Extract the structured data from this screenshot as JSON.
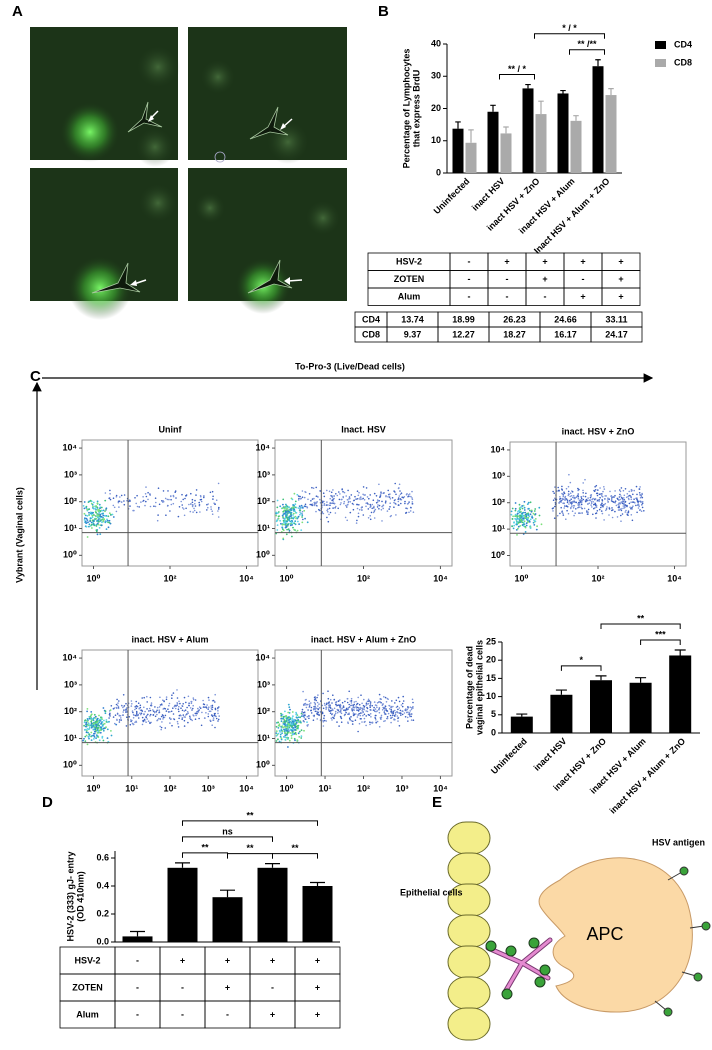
{
  "panel_labels": [
    "A",
    "B",
    "C",
    "D",
    "E"
  ],
  "panel_b_conditions": {
    "rows": [
      [
        "HSV-2",
        "-",
        "+",
        "+",
        "+",
        "+"
      ],
      [
        "ZOTEN",
        "-",
        "-",
        "+",
        "-",
        "+"
      ],
      [
        "Alum",
        "-",
        "-",
        "-",
        "+",
        "+"
      ]
    ]
  },
  "panel_c": {
    "x_label": "To-Pro-3 (Live/Dead cells)",
    "y_label": "Vybrant (Vaginal cells)"
  },
  "panel_e": {
    "cells_label": "Epithelial cells",
    "antigen_label": "HSV antigen",
    "apc_label": "APC"
  },
  "chart_data": [
    {
      "type": "bar",
      "ylabel": [
        "Percentage of Lymphocytes",
        "that express BrdU"
      ],
      "categories": [
        "Uninfected",
        "inact HSV",
        "inact HSV + ZnO",
        "inact HSV + Alum",
        "Inact HSV + Alum + ZnO"
      ],
      "series": [
        {
          "name": "CD4",
          "color": "#000000",
          "values": [
            13.74,
            18.99,
            26.23,
            24.66,
            33.11
          ],
          "errors": [
            2.1,
            2.0,
            1.2,
            0.9,
            2.0
          ]
        },
        {
          "name": "CD8",
          "color": "#aaaaaa",
          "values": [
            9.37,
            12.27,
            18.27,
            16.17,
            24.17
          ],
          "errors": [
            4.0,
            2.0,
            4.0,
            1.6,
            2.0
          ]
        }
      ],
      "ylim": [
        0,
        40
      ],
      "yticks": [
        0,
        10,
        20,
        30,
        40
      ],
      "legend": "right",
      "brackets": [
        {
          "label": "** / *",
          "between": [
            1,
            2
          ]
        },
        {
          "label": "** /**",
          "between": [
            3,
            4
          ]
        },
        {
          "label": "* / *",
          "between": [
            2,
            4
          ]
        }
      ]
    },
    {
      "type": "flow",
      "title": "Uninf",
      "xscale": "log",
      "yscale": "log",
      "xlim": [
        0.5,
        20000
      ],
      "ylim": [
        0.4,
        20000
      ],
      "xticks": [
        {
          "value": 1,
          "label": "10⁰"
        },
        {
          "value": 100,
          "label": "10²"
        },
        {
          "value": 10000,
          "label": "10⁴"
        }
      ],
      "yticks": [
        {
          "value": 1,
          "label": "10⁰"
        },
        {
          "value": 10,
          "label": "10¹"
        },
        {
          "value": 100,
          "label": "10²"
        },
        {
          "value": 1000,
          "label": "10³"
        },
        {
          "value": 10000,
          "label": "10⁴"
        }
      ],
      "gate": {
        "x": 8,
        "y": 7
      }
    },
    {
      "type": "flow",
      "title": "Inact. HSV",
      "xscale": "log",
      "yscale": "log",
      "xlim": [
        0.5,
        20000
      ],
      "ylim": [
        0.4,
        20000
      ],
      "xticks": [
        {
          "value": 1,
          "label": "10⁰"
        },
        {
          "value": 100,
          "label": "10²"
        },
        {
          "value": 10000,
          "label": "10⁴"
        }
      ],
      "yticks": [
        {
          "value": 1,
          "label": "10⁰"
        },
        {
          "value": 10,
          "label": "10¹"
        },
        {
          "value": 100,
          "label": "10²"
        },
        {
          "value": 1000,
          "label": "10³"
        },
        {
          "value": 10000,
          "label": "10⁴"
        }
      ],
      "gate": {
        "x": 8,
        "y": 7
      }
    },
    {
      "type": "flow",
      "title": "inact. HSV + ZnO",
      "xscale": "log",
      "yscale": "log",
      "xlim": [
        0.5,
        20000
      ],
      "ylim": [
        0.4,
        20000
      ],
      "xticks": [
        {
          "value": 1,
          "label": "10⁰"
        },
        {
          "value": 100,
          "label": "10²"
        },
        {
          "value": 10000,
          "label": "10⁴"
        }
      ],
      "yticks": [
        {
          "value": 1,
          "label": "10⁰"
        },
        {
          "value": 10,
          "label": "10¹"
        },
        {
          "value": 100,
          "label": "10²"
        },
        {
          "value": 1000,
          "label": "10³"
        },
        {
          "value": 10000,
          "label": "10⁴"
        }
      ],
      "gate": {
        "x": 8,
        "y": 7
      }
    },
    {
      "type": "flow",
      "title": "inact. HSV + Alum",
      "xscale": "log",
      "yscale": "log",
      "xlim": [
        0.5,
        20000
      ],
      "ylim": [
        0.4,
        20000
      ],
      "xticks": [
        {
          "value": 1,
          "label": "10⁰"
        },
        {
          "value": 10,
          "label": "10¹"
        },
        {
          "value": 100,
          "label": "10²"
        },
        {
          "value": 1000,
          "label": "10³"
        },
        {
          "value": 10000,
          "label": "10⁴"
        }
      ],
      "yticks": [
        {
          "value": 1,
          "label": "10⁰"
        },
        {
          "value": 10,
          "label": "10¹"
        },
        {
          "value": 100,
          "label": "10²"
        },
        {
          "value": 1000,
          "label": "10³"
        },
        {
          "value": 10000,
          "label": "10⁴"
        }
      ],
      "gate": {
        "x": 8,
        "y": 7
      }
    },
    {
      "type": "flow",
      "title": "inact. HSV + Alum + ZnO",
      "xscale": "log",
      "yscale": "log",
      "xlim": [
        0.5,
        20000
      ],
      "ylim": [
        0.4,
        20000
      ],
      "xticks": [
        {
          "value": 1,
          "label": "10⁰"
        },
        {
          "value": 10,
          "label": "10¹"
        },
        {
          "value": 100,
          "label": "10²"
        },
        {
          "value": 1000,
          "label": "10³"
        },
        {
          "value": 10000,
          "label": "10⁴"
        }
      ],
      "yticks": [
        {
          "value": 1,
          "label": "10⁰"
        },
        {
          "value": 10,
          "label": "10¹"
        },
        {
          "value": 100,
          "label": "10²"
        },
        {
          "value": 1000,
          "label": "10³"
        },
        {
          "value": 10000,
          "label": "10⁴"
        }
      ],
      "gate": {
        "x": 8,
        "y": 7
      }
    },
    {
      "type": "bar",
      "ylabel": [
        "Percentage of dead",
        "vaginal epithelial cells"
      ],
      "categories": [
        "Uninfected",
        "inact HSV",
        "inact HSV + ZnO",
        "inact HSV + Alum",
        "inact HSV + Alum + ZnO"
      ],
      "series": [
        {
          "color": "#000000",
          "values": [
            4.5,
            10.5,
            14.5,
            13.8,
            21.3
          ],
          "errors": [
            0.7,
            1.3,
            1.2,
            1.4,
            1.5
          ]
        }
      ],
      "ylim": [
        0,
        25
      ],
      "yticks": [
        0,
        5,
        10,
        15,
        20,
        25
      ],
      "brackets": [
        {
          "label": "*",
          "between": [
            1,
            2
          ]
        },
        {
          "label": "***",
          "between": [
            3,
            4
          ]
        },
        {
          "label": "**",
          "between": [
            2,
            4
          ]
        }
      ]
    },
    {
      "type": "bar",
      "ylabel": [
        "HSV-2 (333) gJ- entry",
        "(OD 410nm)"
      ],
      "series": [
        {
          "color": "#000000",
          "values": [
            0.04,
            0.53,
            0.32,
            0.53,
            0.4
          ],
          "errors": [
            0.035,
            0.035,
            0.05,
            0.03,
            0.025
          ]
        }
      ],
      "ylim": [
        0,
        0.65
      ],
      "yticks": [
        {
          "value": 0,
          "label": "0.0"
        },
        0.2,
        0.4,
        0.6
      ],
      "brackets": [
        {
          "label": "**",
          "between": [
            1,
            2
          ]
        },
        {
          "label": "**",
          "between": [
            2,
            3
          ]
        },
        {
          "label": "**",
          "between": [
            3,
            4
          ]
        },
        {
          "label": "ns",
          "between": [
            1,
            3
          ]
        },
        {
          "label": "**",
          "between": [
            1,
            4
          ]
        }
      ],
      "table": {
        "rows": [
          [
            "HSV-2",
            "-",
            "+",
            "+",
            "+",
            "+"
          ],
          [
            "ZOTEN",
            "-",
            "-",
            "+",
            "-",
            "+"
          ],
          [
            "Alum",
            "-",
            "-",
            "-",
            "+",
            "+"
          ]
        ]
      }
    }
  ]
}
